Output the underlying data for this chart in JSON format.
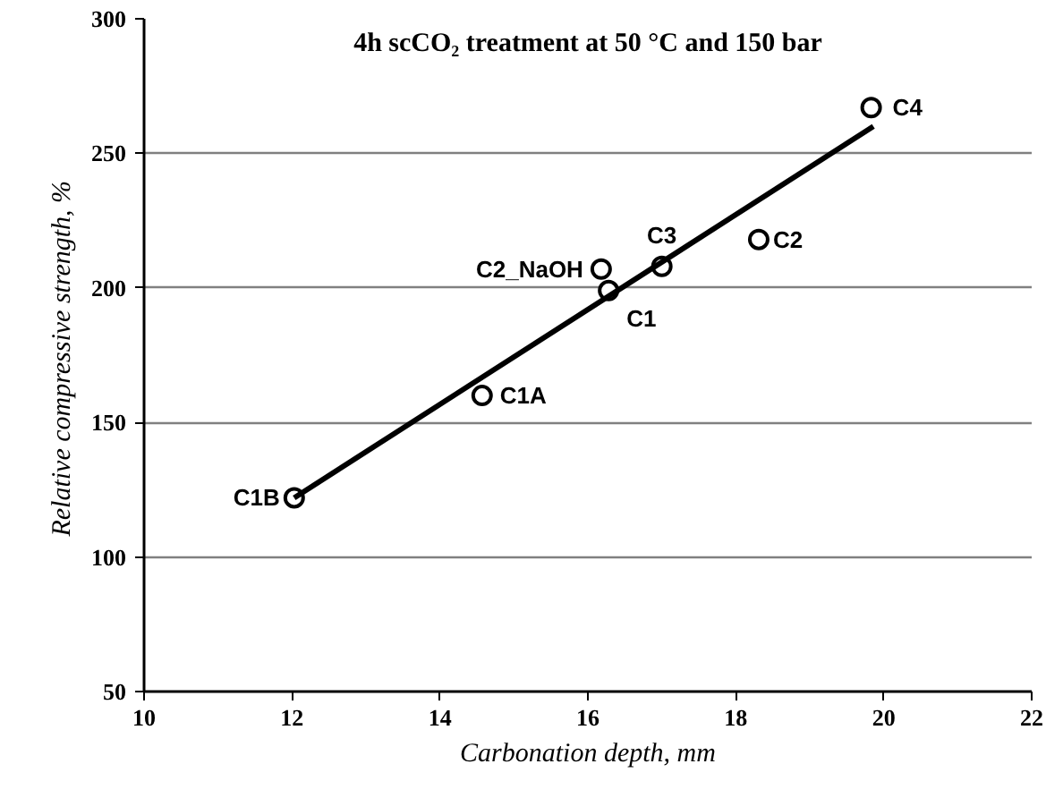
{
  "chart_data": {
    "type": "scatter",
    "title": "4h scCO₂ treatment at 50 °C and 150 bar",
    "xlabel": "Carbonation depth, mm",
    "ylabel": "Relative compressive  strength, %",
    "series": [
      {
        "color": "#000000",
        "marker": "circle",
        "x": [
          12.03,
          14.57,
          16.18,
          16.28,
          17.0,
          18.31,
          19.83
        ],
        "values": [
          122,
          160,
          207,
          199,
          208,
          218,
          267
        ]
      },
      {
        "type": "line",
        "color": "#000000",
        "x": [
          12.03,
          19.86
        ],
        "values": [
          122,
          260
        ]
      }
    ],
    "annotations": [
      {
        "text": "C1B",
        "x": 12.03,
        "y": 122
      },
      {
        "text": "C1A",
        "x": 14.57,
        "y": 160
      },
      {
        "text": "C2_NaOH",
        "x": 16.18,
        "y": 207
      },
      {
        "text": "C1",
        "x": 16.28,
        "y": 199
      },
      {
        "text": "C3",
        "x": 17.0,
        "y": 208
      },
      {
        "text": "C2",
        "x": 18.31,
        "y": 218
      },
      {
        "text": "C4",
        "x": 19.83,
        "y": 267
      }
    ],
    "xlim": [
      10,
      22
    ],
    "xticks": [
      10,
      12,
      14,
      16,
      18,
      20,
      22
    ],
    "ylim": [
      50,
      300
    ],
    "yticks": [
      50,
      100,
      150,
      200,
      250,
      300
    ],
    "grid": "y"
  }
}
